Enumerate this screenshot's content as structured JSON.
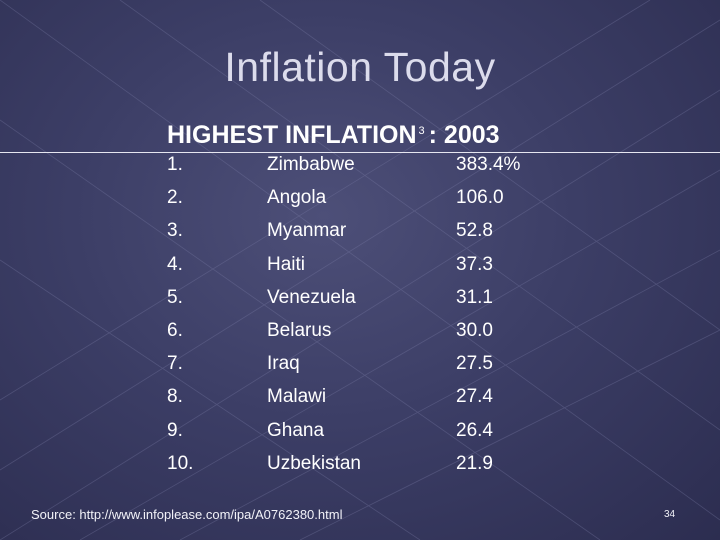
{
  "slide": {
    "title": "Inflation Today",
    "subtitle": {
      "text": "HIGHEST INFLATION",
      "footnote_marker": "3",
      "suffix": ": 2003"
    },
    "table": {
      "rows": [
        {
          "rank": "1.",
          "country": "Zimbabwe",
          "rate": "383.4%"
        },
        {
          "rank": "2.",
          "country": "Angola",
          "rate": "106.0"
        },
        {
          "rank": "3.",
          "country": "Myanmar",
          "rate": "52.8"
        },
        {
          "rank": "4.",
          "country": "Haiti",
          "rate": "37.3"
        },
        {
          "rank": "5.",
          "country": "Venezuela",
          "rate": "31.1"
        },
        {
          "rank": "6.",
          "country": "Belarus",
          "rate": "30.0"
        },
        {
          "rank": "7.",
          "country": "Iraq",
          "rate": "27.5"
        },
        {
          "rank": "8.",
          "country": "Malawi",
          "rate": "27.4"
        },
        {
          "rank": "9.",
          "country": "Ghana",
          "rate": "26.4"
        },
        {
          "rank": "10.",
          "country": "Uzbekistan",
          "rate": "21.9"
        }
      ]
    },
    "source": "Source: http://www.infoplease.com/ipa/A0762380.html",
    "page_number": "34"
  }
}
